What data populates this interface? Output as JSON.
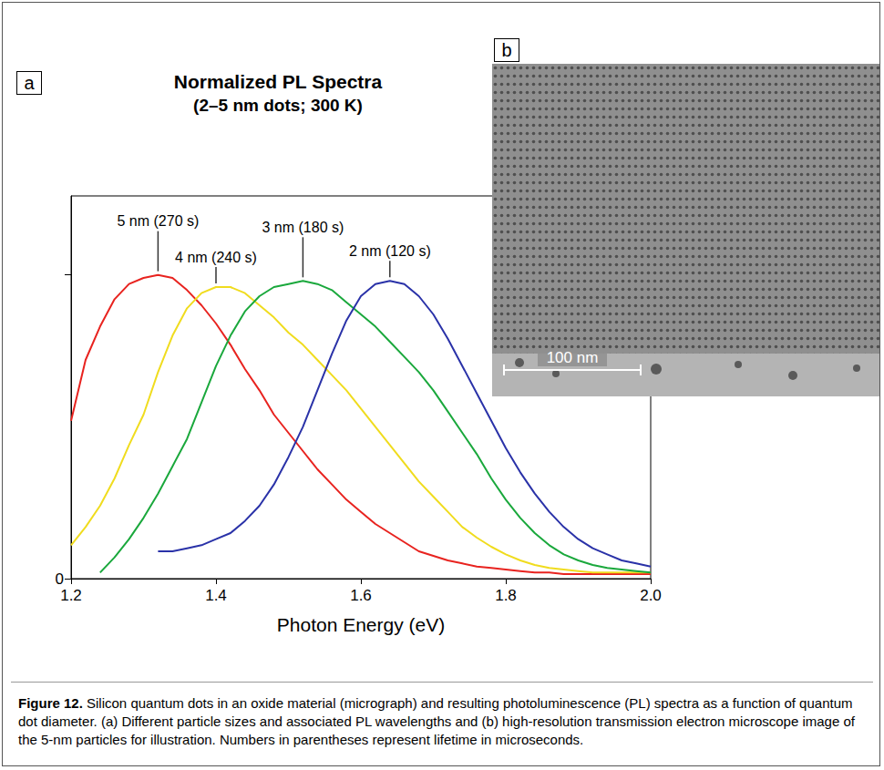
{
  "chart_data": {
    "type": "line",
    "title": "Normalized PL Spectra",
    "subtitle": "(2–5 nm dots; 300 K)",
    "x_label": "Photon Energy (eV)",
    "xlim": [
      1.2,
      2.0
    ],
    "xticks": [
      1.2,
      1.4,
      1.6,
      1.8,
      {
        "value": 2.0,
        "label": "2.0"
      }
    ],
    "ylim": [
      0,
      1.26
    ],
    "yticks": [
      0,
      {
        "value": 1,
        "label": null
      }
    ],
    "grid": false,
    "x": [
      1.2,
      1.22,
      1.24,
      1.26,
      1.28,
      1.3,
      1.32,
      1.34,
      1.36,
      1.38,
      1.4,
      1.42,
      1.44,
      1.46,
      1.48,
      1.5,
      1.52,
      1.54,
      1.56,
      1.58,
      1.6,
      1.62,
      1.64,
      1.66,
      1.68,
      1.7,
      1.72,
      1.74,
      1.76,
      1.78,
      1.8,
      1.82,
      1.84,
      1.86,
      1.88,
      1.9,
      1.92,
      1.94,
      1.96,
      1.98,
      2.0
    ],
    "series": [
      {
        "name": "5 nm (270 s)",
        "color": "#e8231f",
        "values": [
          0.52,
          0.72,
          0.83,
          0.92,
          0.97,
          0.99,
          1.0,
          0.99,
          0.95,
          0.9,
          0.84,
          0.77,
          0.69,
          0.62,
          0.54,
          0.48,
          0.42,
          0.36,
          0.31,
          0.26,
          0.22,
          0.18,
          0.15,
          0.12,
          0.09,
          0.075,
          0.06,
          0.05,
          0.04,
          0.035,
          0.03,
          0.025,
          0.02,
          0.02,
          0.015,
          0.015,
          0.015,
          0.015,
          0.015,
          0.015,
          0.015
        ]
      },
      {
        "name": "4 nm (240 s)",
        "color": "#f0dc1e",
        "values": [
          0.11,
          0.17,
          0.24,
          0.33,
          0.44,
          0.54,
          0.68,
          0.8,
          0.89,
          0.94,
          0.96,
          0.96,
          0.94,
          0.9,
          0.86,
          0.81,
          0.77,
          0.72,
          0.67,
          0.62,
          0.56,
          0.5,
          0.44,
          0.38,
          0.32,
          0.27,
          0.22,
          0.17,
          0.135,
          0.105,
          0.08,
          0.06,
          0.045,
          0.035,
          0.03,
          0.025,
          0.02,
          0.02,
          0.02,
          0.02,
          0.02
        ]
      },
      {
        "name": "3 nm (180 s)",
        "color": "#1aa83c",
        "values": [
          null,
          null,
          0.02,
          0.07,
          0.13,
          0.2,
          0.28,
          0.37,
          0.46,
          0.58,
          0.7,
          0.8,
          0.88,
          0.93,
          0.96,
          0.97,
          0.98,
          0.97,
          0.95,
          0.91,
          0.87,
          0.83,
          0.78,
          0.73,
          0.68,
          0.62,
          0.55,
          0.48,
          0.41,
          0.33,
          0.26,
          0.2,
          0.15,
          0.11,
          0.08,
          0.06,
          0.045,
          0.035,
          0.03,
          0.025,
          0.02
        ]
      },
      {
        "name": "2 nm (120 s)",
        "color": "#2a32a8",
        "values": [
          null,
          null,
          null,
          null,
          null,
          null,
          0.09,
          0.09,
          0.1,
          0.11,
          0.13,
          0.15,
          0.19,
          0.24,
          0.31,
          0.4,
          0.5,
          0.62,
          0.74,
          0.85,
          0.93,
          0.97,
          0.98,
          0.97,
          0.93,
          0.87,
          0.79,
          0.7,
          0.61,
          0.52,
          0.43,
          0.35,
          0.28,
          0.22,
          0.17,
          0.13,
          0.1,
          0.08,
          0.06,
          0.05,
          0.04
        ]
      }
    ]
  },
  "panel_labels": [
    "a",
    "b"
  ],
  "micrograph": {
    "scale_bar": "100 nm"
  },
  "caption": {
    "label": "Figure 12.",
    "text": "Silicon quantum dots in an oxide material (micrograph) and resulting photoluminescence (PL) spectra as a function of quantum dot diameter. (a) Different particle sizes and associated PL wavelengths and (b) high-resolution transmission electron microscope image of the 5-nm particles for illustration. Numbers in parentheses represent lifetime in microseconds."
  }
}
